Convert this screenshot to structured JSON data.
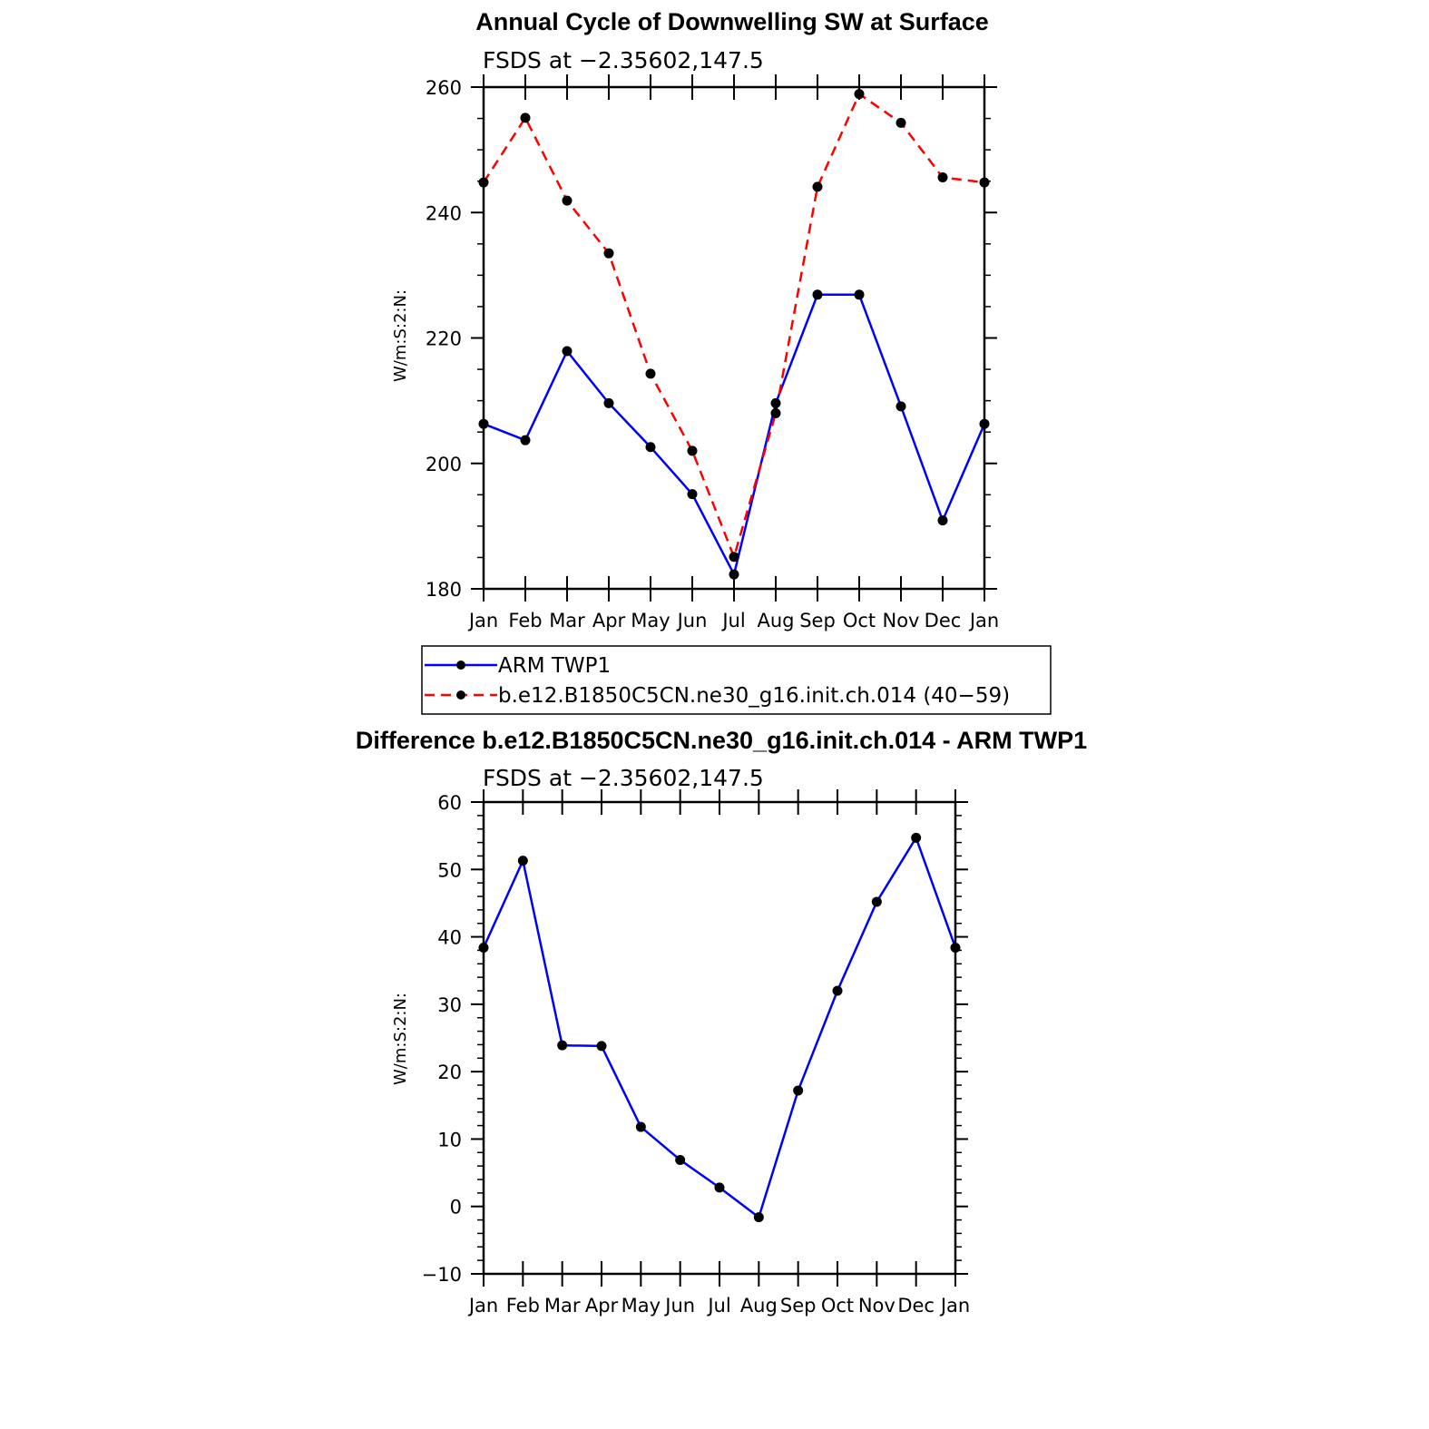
{
  "chart_data": [
    {
      "type": "line",
      "title": "Annual Cycle of Downwelling SW at Surface",
      "subtitle": "FSDS at −2.35602,147.5",
      "ylabel": "W/m:S:2:N:",
      "xlabel": "",
      "categories": [
        "Jan",
        "Feb",
        "Mar",
        "Apr",
        "May",
        "Jun",
        "Jul",
        "Aug",
        "Sep",
        "Oct",
        "Nov",
        "Dec",
        "Jan"
      ],
      "ylim": [
        180,
        260
      ],
      "yticks": [
        "180",
        "200",
        "220",
        "240",
        "260"
      ],
      "grid": false,
      "legend_position": "bottom",
      "series": [
        {
          "name": "ARM  TWP1",
          "color": "#0000ff",
          "dash": "solid",
          "values": [
            206.3,
            203.7,
            217.9,
            209.6,
            202.6,
            195.1,
            182.3,
            209.6,
            226.9,
            226.9,
            209.1,
            190.9,
            206.3
          ]
        },
        {
          "name": "b.e12.B1850C5CN.ne30_g16.init.ch.014 (40−59)",
          "color": "#ff0000",
          "dash": "dashed",
          "values": [
            244.8,
            255.1,
            241.9,
            233.5,
            214.3,
            202.0,
            185.1,
            208.0,
            244.1,
            258.9,
            254.3,
            245.6,
            244.8
          ]
        }
      ]
    },
    {
      "type": "line",
      "title": "Difference b.e12.B1850C5CN.ne30_g16.init.ch.014 - ARM TWP1",
      "subtitle": "FSDS at −2.35602,147.5",
      "ylabel": "W/m:S:2:N:",
      "xlabel": "",
      "categories": [
        "Jan",
        "Feb",
        "Mar",
        "Apr",
        "May",
        "Jun",
        "Jul",
        "Aug",
        "Sep",
        "Oct",
        "Nov",
        "Dec",
        "Jan"
      ],
      "ylim": [
        -10,
        60
      ],
      "yticks": [
        "−10",
        "0",
        "10",
        "20",
        "30",
        "40",
        "50",
        "60"
      ],
      "grid": false,
      "series": [
        {
          "color": "#0000ff",
          "dash": "solid",
          "values": [
            38.4,
            51.3,
            23.9,
            23.8,
            11.8,
            6.9,
            2.8,
            -1.6,
            17.2,
            32.0,
            45.2,
            54.7,
            38.4
          ]
        }
      ]
    }
  ]
}
